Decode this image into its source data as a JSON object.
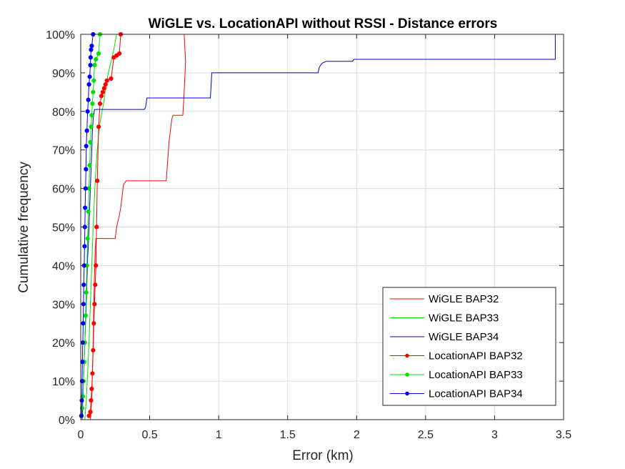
{
  "chart_data": {
    "type": "line",
    "title": "WiGLE vs. LocationAPI without RSSI - Distance errors",
    "xlabel": "Error (km)",
    "ylabel": "Cumulative frequency",
    "xlim": [
      0,
      3.5
    ],
    "ylim": [
      0,
      1
    ],
    "x_ticks": [
      "0",
      "0.5",
      "1",
      "1.5",
      "2",
      "2.5",
      "3",
      "3.5"
    ],
    "y_ticks": [
      "0%",
      "10%",
      "20%",
      "30%",
      "40%",
      "50%",
      "60%",
      "70%",
      "80%",
      "90%",
      "100%"
    ],
    "grid": true,
    "legend_position": "bottom-right",
    "series": [
      {
        "name": "WiGLE BAP32",
        "color": "#ff0000",
        "markers": false,
        "points": [
          [
            0.07,
            0
          ],
          [
            0.075,
            0.02
          ],
          [
            0.08,
            0.06
          ],
          [
            0.085,
            0.12
          ],
          [
            0.09,
            0.2
          ],
          [
            0.095,
            0.3
          ],
          [
            0.1,
            0.38
          ],
          [
            0.105,
            0.44
          ],
          [
            0.11,
            0.47
          ],
          [
            0.25,
            0.47
          ],
          [
            0.26,
            0.5
          ],
          [
            0.28,
            0.53
          ],
          [
            0.29,
            0.55
          ],
          [
            0.3,
            0.58
          ],
          [
            0.31,
            0.61
          ],
          [
            0.33,
            0.62
          ],
          [
            0.62,
            0.62
          ],
          [
            0.63,
            0.67
          ],
          [
            0.64,
            0.72
          ],
          [
            0.65,
            0.75
          ],
          [
            0.66,
            0.78
          ],
          [
            0.67,
            0.79
          ],
          [
            0.74,
            0.79
          ],
          [
            0.75,
            0.85
          ],
          [
            0.76,
            0.93
          ],
          [
            0.75,
            1.0
          ]
        ]
      },
      {
        "name": "WiGLE BAP33",
        "color": "#00e000",
        "markers": false,
        "points": [
          [
            0.03,
            0
          ],
          [
            0.04,
            0.05
          ],
          [
            0.05,
            0.12
          ],
          [
            0.06,
            0.2
          ],
          [
            0.07,
            0.3
          ],
          [
            0.08,
            0.4
          ],
          [
            0.09,
            0.5
          ],
          [
            0.1,
            0.58
          ],
          [
            0.11,
            0.65
          ],
          [
            0.12,
            0.7
          ],
          [
            0.13,
            0.74
          ],
          [
            0.14,
            0.77
          ],
          [
            0.15,
            0.79
          ],
          [
            0.16,
            0.81
          ],
          [
            0.17,
            0.83
          ],
          [
            0.18,
            0.86
          ],
          [
            0.19,
            0.88
          ],
          [
            0.2,
            0.9
          ],
          [
            0.22,
            0.93
          ],
          [
            0.24,
            0.96
          ],
          [
            0.26,
            1.0
          ]
        ]
      },
      {
        "name": "WiGLE BAP34",
        "color": "#0000cd",
        "markers": false,
        "points": [
          [
            0.01,
            0
          ],
          [
            0.015,
            0.05
          ],
          [
            0.02,
            0.1
          ],
          [
            0.025,
            0.15
          ],
          [
            0.03,
            0.2
          ],
          [
            0.035,
            0.25
          ],
          [
            0.04,
            0.3
          ],
          [
            0.045,
            0.36
          ],
          [
            0.05,
            0.42
          ],
          [
            0.055,
            0.45
          ],
          [
            0.06,
            0.5
          ],
          [
            0.065,
            0.55
          ],
          [
            0.07,
            0.6
          ],
          [
            0.075,
            0.65
          ],
          [
            0.08,
            0.7
          ],
          [
            0.085,
            0.75
          ],
          [
            0.09,
            0.78
          ],
          [
            0.1,
            0.805
          ],
          [
            0.46,
            0.805
          ],
          [
            0.47,
            0.81
          ],
          [
            0.48,
            0.835
          ],
          [
            0.94,
            0.835
          ],
          [
            0.95,
            0.9
          ],
          [
            1.72,
            0.9
          ],
          [
            1.73,
            0.915
          ],
          [
            1.75,
            0.925
          ],
          [
            1.78,
            0.93
          ],
          [
            1.97,
            0.93
          ],
          [
            1.98,
            0.935
          ],
          [
            3.44,
            0.935
          ],
          [
            3.44,
            1.0
          ]
        ]
      },
      {
        "name": "LocationAPI BAP32",
        "color": "#ff0000",
        "markers": true,
        "points": [
          [
            0.06,
            0.01
          ],
          [
            0.07,
            0.02
          ],
          [
            0.075,
            0.05
          ],
          [
            0.08,
            0.08
          ],
          [
            0.085,
            0.12
          ],
          [
            0.09,
            0.18
          ],
          [
            0.095,
            0.25
          ],
          [
            0.1,
            0.3
          ],
          [
            0.105,
            0.35
          ],
          [
            0.11,
            0.4
          ],
          [
            0.115,
            0.5
          ],
          [
            0.12,
            0.62
          ],
          [
            0.13,
            0.76
          ],
          [
            0.14,
            0.82
          ],
          [
            0.15,
            0.84
          ],
          [
            0.16,
            0.85
          ],
          [
            0.17,
            0.86
          ],
          [
            0.18,
            0.87
          ],
          [
            0.19,
            0.88
          ],
          [
            0.22,
            0.885
          ],
          [
            0.24,
            0.94
          ],
          [
            0.26,
            0.945
          ],
          [
            0.28,
            0.95
          ],
          [
            0.29,
            1.0
          ]
        ]
      },
      {
        "name": "LocationAPI BAP33",
        "color": "#00e000",
        "markers": true,
        "points": [
          [
            0.005,
            0.01
          ],
          [
            0.01,
            0.03
          ],
          [
            0.015,
            0.06
          ],
          [
            0.02,
            0.1
          ],
          [
            0.025,
            0.15
          ],
          [
            0.03,
            0.2
          ],
          [
            0.035,
            0.27
          ],
          [
            0.04,
            0.33
          ],
          [
            0.045,
            0.4
          ],
          [
            0.05,
            0.47
          ],
          [
            0.055,
            0.54
          ],
          [
            0.06,
            0.6
          ],
          [
            0.065,
            0.66
          ],
          [
            0.07,
            0.72
          ],
          [
            0.075,
            0.76
          ],
          [
            0.08,
            0.79
          ],
          [
            0.085,
            0.82
          ],
          [
            0.09,
            0.85
          ],
          [
            0.095,
            0.88
          ],
          [
            0.1,
            0.92
          ],
          [
            0.11,
            0.935
          ],
          [
            0.13,
            0.95
          ],
          [
            0.14,
            1.0
          ]
        ]
      },
      {
        "name": "LocationAPI BAP34",
        "color": "#0000ff",
        "markers": true,
        "points": [
          [
            0.005,
            0.01
          ],
          [
            0.008,
            0.05
          ],
          [
            0.01,
            0.1
          ],
          [
            0.012,
            0.15
          ],
          [
            0.015,
            0.2
          ],
          [
            0.018,
            0.25
          ],
          [
            0.02,
            0.3
          ],
          [
            0.022,
            0.35
          ],
          [
            0.025,
            0.4
          ],
          [
            0.028,
            0.45
          ],
          [
            0.03,
            0.5
          ],
          [
            0.032,
            0.55
          ],
          [
            0.035,
            0.6
          ],
          [
            0.038,
            0.65
          ],
          [
            0.04,
            0.71
          ],
          [
            0.045,
            0.75
          ],
          [
            0.05,
            0.8
          ],
          [
            0.055,
            0.83
          ],
          [
            0.06,
            0.87
          ],
          [
            0.065,
            0.89
          ],
          [
            0.07,
            0.92
          ],
          [
            0.072,
            0.94
          ],
          [
            0.075,
            0.96
          ],
          [
            0.08,
            0.97
          ],
          [
            0.09,
            1.0
          ]
        ]
      }
    ]
  }
}
